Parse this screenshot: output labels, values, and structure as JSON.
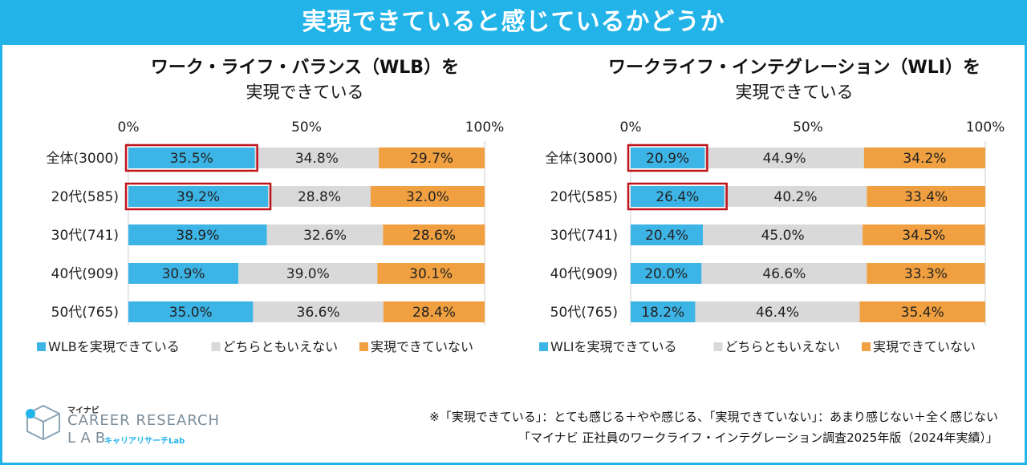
{
  "header": {
    "title": "実現できていると感じているかどうか"
  },
  "colors": {
    "accent": "#22b3e8",
    "bar_blue": "#3db4e6",
    "bar_gray": "#d9d9d9",
    "bar_orange": "#f0a040",
    "highlight": "#c0141c"
  },
  "chart_data": [
    {
      "type": "bar",
      "orientation": "horizontal-stacked-100",
      "title_line1": "ワーク・ライフ・バランス（WLB）を",
      "title_line2": "実現できている",
      "categories": [
        "全体(3000)",
        "20代(585)",
        "30代(741)",
        "40代(909)",
        "50代(765)"
      ],
      "series": [
        {
          "name": "WLBを実現できている",
          "values": [
            35.5,
            39.2,
            38.9,
            30.9,
            35.0
          ],
          "labels": [
            "35.5%",
            "39.2%",
            "38.9%",
            "30.9%",
            "35.0%"
          ]
        },
        {
          "name": "どちらともいえない",
          "values": [
            34.8,
            28.8,
            32.6,
            39.0,
            36.6
          ],
          "labels": [
            "34.8%",
            "28.8%",
            "32.6%",
            "39.0%",
            "36.6%"
          ]
        },
        {
          "name": "実現できていない",
          "values": [
            29.7,
            32.0,
            28.6,
            30.1,
            28.4
          ],
          "labels": [
            "29.7%",
            "32.0%",
            "28.6%",
            "30.1%",
            "28.4%"
          ]
        }
      ],
      "highlighted_categories": [
        0,
        1
      ],
      "ticks": [
        "0%",
        "50%",
        "100%"
      ],
      "xlim": [
        0,
        100
      ]
    },
    {
      "type": "bar",
      "orientation": "horizontal-stacked-100",
      "title_line1": "ワークライフ・インテグレーション（WLI）を",
      "title_line2": "実現できている",
      "categories": [
        "全体(3000)",
        "20代(585)",
        "30代(741)",
        "40代(909)",
        "50代(765)"
      ],
      "series": [
        {
          "name": "WLIを実現できている",
          "values": [
            20.9,
            26.4,
            20.4,
            20.0,
            18.2
          ],
          "labels": [
            "20.9%",
            "26.4%",
            "20.4%",
            "20.0%",
            "18.2%"
          ]
        },
        {
          "name": "どちらともいえない",
          "values": [
            44.9,
            40.2,
            45.0,
            46.6,
            46.4
          ],
          "labels": [
            "44.9%",
            "40.2%",
            "45.0%",
            "46.6%",
            "46.4%"
          ]
        },
        {
          "name": "実現できていない",
          "values": [
            34.2,
            33.4,
            34.5,
            33.3,
            35.4
          ],
          "labels": [
            "34.2%",
            "33.4%",
            "34.5%",
            "33.3%",
            "35.4%"
          ]
        }
      ],
      "highlighted_categories": [
        0,
        1
      ],
      "ticks": [
        "0%",
        "50%",
        "100%"
      ],
      "xlim": [
        0,
        100
      ]
    }
  ],
  "footer": {
    "note": "※「実現できている」：とても感じる＋やや感じる、「実現できていない」：あまり感じない＋全く感じない",
    "source": "「マイナビ 正社員のワークライフ・インテグレーション調査2025年版（2024年実績）」"
  },
  "logo": {
    "brand": "マイナビ",
    "line1": "CAREER RESEARCH",
    "line2": "LAB",
    "sub": "キャリアリサーチLab"
  }
}
